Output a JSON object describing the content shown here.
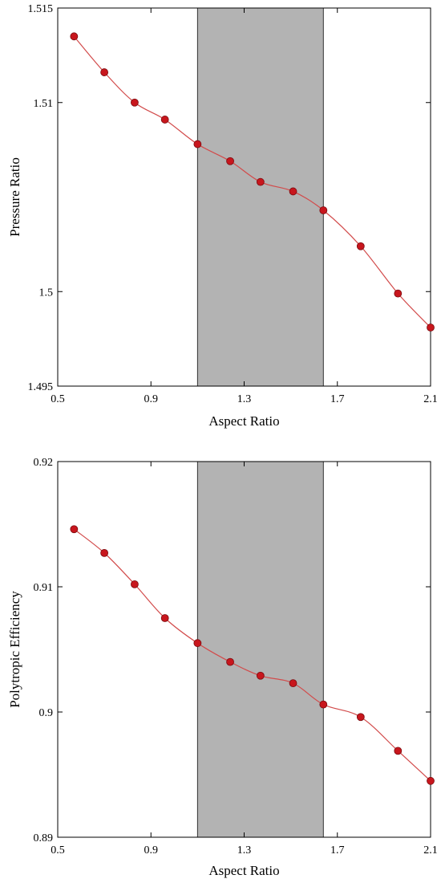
{
  "chart_data": [
    {
      "type": "line",
      "title": "",
      "xlabel": "Aspect Ratio",
      "ylabel": "Pressure Ratio",
      "xlim": [
        0.5,
        2.1
      ],
      "ylim": [
        1.495,
        1.515
      ],
      "xticks": [
        0.5,
        0.9,
        1.3,
        1.7,
        2.1
      ],
      "xtick_labels": [
        "0.5",
        "0.9",
        "1.3",
        "1.7",
        "2.1"
      ],
      "yticks": [
        1.495,
        1.5,
        1.51,
        1.515
      ],
      "ytick_labels": [
        "1.495",
        "1.5",
        "1.51",
        "1.515"
      ],
      "shaded_region": [
        1.1,
        1.64
      ],
      "grid": false,
      "legend": "none",
      "series": [
        {
          "x": [
            0.57,
            0.7,
            0.83,
            0.96,
            1.1,
            1.24,
            1.37,
            1.51,
            1.64,
            1.8,
            1.96,
            2.1
          ],
          "y": [
            1.5135,
            1.5116,
            1.51,
            1.5091,
            1.5078,
            1.5069,
            1.5058,
            1.5053,
            1.5043,
            1.5024,
            1.4999,
            1.4981
          ]
        }
      ]
    },
    {
      "type": "line",
      "title": "",
      "xlabel": "Aspect Ratio",
      "ylabel": "Polytropic Efficiency",
      "xlim": [
        0.5,
        2.1
      ],
      "ylim": [
        0.89,
        0.92
      ],
      "xticks": [
        0.5,
        0.9,
        1.3,
        1.7,
        2.1
      ],
      "xtick_labels": [
        "0.5",
        "0.9",
        "1.3",
        "1.7",
        "2.1"
      ],
      "yticks": [
        0.89,
        0.9,
        0.91,
        0.92
      ],
      "ytick_labels": [
        "0.89",
        "0.9",
        "0.91",
        "0.92"
      ],
      "shaded_region": [
        1.1,
        1.64
      ],
      "grid": false,
      "legend": "none",
      "series": [
        {
          "x": [
            0.57,
            0.7,
            0.83,
            0.96,
            1.1,
            1.24,
            1.37,
            1.51,
            1.64,
            1.8,
            1.96,
            2.1
          ],
          "y": [
            0.9146,
            0.9127,
            0.9102,
            0.9075,
            0.9055,
            0.904,
            0.9029,
            0.9023,
            0.9006,
            0.8996,
            0.8969,
            0.8945
          ]
        }
      ]
    }
  ],
  "colors": {
    "line": "#d24b4b",
    "marker": "#c8161d",
    "marker_edge": "#7a0c10",
    "shade": "#b3b3b3"
  }
}
